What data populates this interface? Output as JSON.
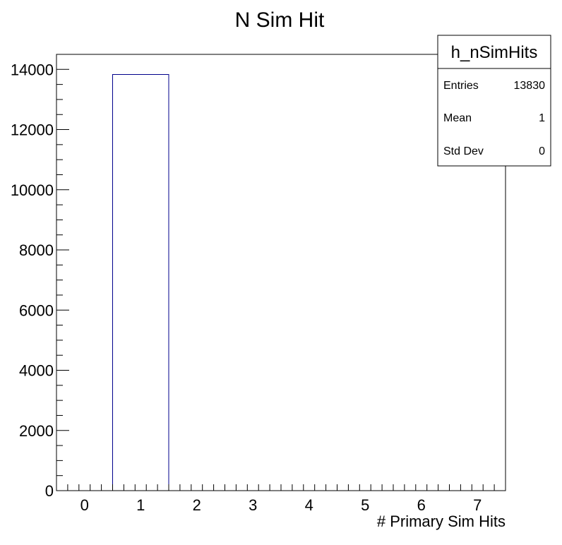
{
  "chart_data": {
    "type": "bar",
    "title": "N Sim Hit",
    "xlabel": "# Primary Sim Hits",
    "ylabel": "",
    "xlim": [
      -0.5,
      7.5
    ],
    "ylim": [
      0,
      14500
    ],
    "x_ticks": [
      0,
      1,
      2,
      3,
      4,
      5,
      6,
      7
    ],
    "y_ticks": [
      0,
      2000,
      4000,
      6000,
      8000,
      10000,
      12000,
      14000
    ],
    "bins": [
      {
        "low": 0.5,
        "high": 1.5,
        "value": 13830
      }
    ],
    "bar_color": "#00008b",
    "grid": false,
    "legend": "none",
    "stats_box": {
      "name": "h_nSimHits",
      "rows": [
        {
          "label": "Entries",
          "value": "13830"
        },
        {
          "label": "Mean",
          "value": "1"
        },
        {
          "label": "Std Dev",
          "value": "0"
        }
      ]
    }
  }
}
